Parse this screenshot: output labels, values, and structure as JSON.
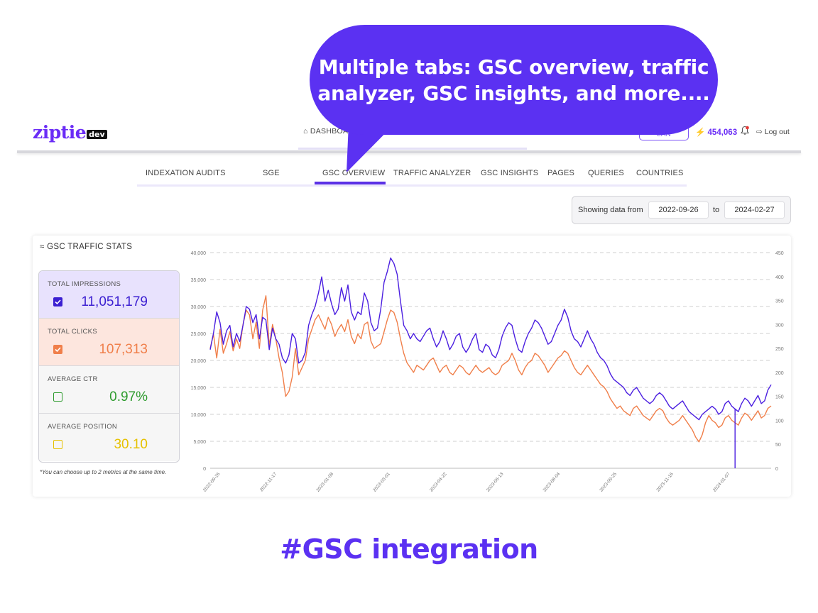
{
  "logo": {
    "text": "ziptie",
    "badge": "dev"
  },
  "topnav": {
    "dashboard_label": "DASHBOA",
    "plan_label": "LAN",
    "credits": "454,063",
    "logout_label": "Log out"
  },
  "tabs": [
    {
      "label": "INDEXATION AUDITS",
      "active": false
    },
    {
      "label": "SGE",
      "active": false
    },
    {
      "label": "GSC OVERVIEW",
      "active": true
    },
    {
      "label": "TRAFFIC ANALYZER",
      "active": false
    },
    {
      "label": "GSC INSIGHTS",
      "active": false
    },
    {
      "label": "PAGES",
      "active": false
    },
    {
      "label": "QUERIES",
      "active": false
    },
    {
      "label": "COUNTRIES",
      "active": false
    }
  ],
  "date_range": {
    "label": "Showing data from",
    "from": "2022-09-26",
    "to_label": "to",
    "to": "2024-02-27"
  },
  "stats": {
    "title": "GSC TRAFFIC STATS",
    "metrics": [
      {
        "label": "TOTAL IMPRESSIONS",
        "value": "11,051,179",
        "checked": true,
        "color": "#3b1fd1",
        "bg": "#e8e2fd"
      },
      {
        "label": "TOTAL CLICKS",
        "value": "107,313",
        "checked": true,
        "color": "#f07f4a",
        "bg": "#fde6de"
      },
      {
        "label": "AVERAGE CTR",
        "value": "0.97%",
        "checked": false,
        "color": "#2e9b2e",
        "bg": "#f6f6f6"
      },
      {
        "label": "AVERAGE POSITION",
        "value": "30.10",
        "checked": false,
        "color": "#e6c100",
        "bg": "#f6f6f6"
      }
    ],
    "note": "*You can choose up to 2 metrics at the same time."
  },
  "chart_data": {
    "type": "line",
    "x_ticks": [
      "2022-09-26",
      "2022-11-17",
      "2023-01-08",
      "2023-03-01",
      "2023-04-22",
      "2023-06-13",
      "2023-08-04",
      "2023-09-25",
      "2023-11-16",
      "2024-01-07"
    ],
    "y_left_ticks": [
      "40,000",
      "35,000",
      "30,000",
      "25,000",
      "20,000",
      "15,000",
      "10,000",
      "5,000",
      "0"
    ],
    "y_right_ticks": [
      "450",
      "400",
      "350",
      "300",
      "250",
      "200",
      "150",
      "100",
      "50",
      "0"
    ],
    "ylim_left": [
      0,
      40000
    ],
    "ylim_right": [
      0,
      450
    ],
    "grid": true,
    "series": [
      {
        "color": "#4b1fe0",
        "axis": "left",
        "values": [
          22000,
          25000,
          29000,
          27000,
          23000,
          25500,
          26500,
          22500,
          25000,
          23500,
          26500,
          30000,
          29500,
          27000,
          28500,
          24000,
          28000,
          27500,
          22000,
          26000,
          24000,
          23000,
          20500,
          19500,
          21000,
          25000,
          24000,
          19500,
          20000,
          21500,
          26500,
          28500,
          30000,
          32500,
          35500,
          31000,
          33000,
          30500,
          28500,
          29500,
          33500,
          31000,
          34000,
          29000,
          27500,
          29000,
          28500,
          32500,
          31000,
          27000,
          25500,
          26000,
          29500,
          34500,
          36500,
          39000,
          38000,
          36000,
          31000,
          26500,
          25500,
          24000,
          25000,
          24000,
          23500,
          24500,
          25500,
          26000,
          24000,
          22500,
          23500,
          25500,
          24000,
          22000,
          23000,
          24500,
          25000,
          22500,
          21500,
          22500,
          24000,
          25000,
          22000,
          21500,
          23000,
          22500,
          21000,
          20500,
          22000,
          24500,
          26000,
          27000,
          26500,
          24000,
          22000,
          21500,
          23500,
          25000,
          26000,
          27500,
          27000,
          26000,
          24500,
          23000,
          23500,
          25000,
          26500,
          27500,
          29500,
          28000,
          25500,
          24000,
          23500,
          22500,
          24000,
          25500,
          24000,
          23000,
          21500,
          20500,
          20000,
          19000,
          17500,
          16500,
          16000,
          15500,
          15000,
          14000,
          13500,
          14500,
          15000,
          14000,
          13000,
          12500,
          12000,
          12500,
          13500,
          14000,
          13500,
          12500,
          11500,
          11000,
          11500,
          12000,
          12500,
          11500,
          10500,
          10000,
          9500,
          9000,
          10000,
          10500,
          11000,
          11500,
          11000,
          10000,
          10500,
          12000,
          12500,
          11500,
          11000,
          10500,
          12000,
          13000,
          12500,
          11500,
          12500,
          13500,
          12000,
          12500,
          14500,
          15500
        ]
      },
      {
        "color": "#f07f4a",
        "axis": "right",
        "values": [
          250,
          280,
          230,
          290,
          240,
          260,
          285,
          245,
          270,
          250,
          300,
          330,
          320,
          270,
          305,
          250,
          330,
          360,
          255,
          300,
          270,
          230,
          200,
          150,
          160,
          190,
          250,
          195,
          210,
          225,
          270,
          290,
          310,
          320,
          305,
          290,
          315,
          300,
          275,
          290,
          300,
          285,
          310,
          275,
          260,
          280,
          270,
          300,
          305,
          265,
          250,
          255,
          260,
          285,
          310,
          330,
          325,
          305,
          270,
          240,
          220,
          210,
          200,
          215,
          210,
          205,
          215,
          225,
          230,
          215,
          200,
          210,
          215,
          200,
          195,
          205,
          215,
          210,
          200,
          195,
          205,
          215,
          205,
          200,
          205,
          210,
          200,
          195,
          200,
          215,
          220,
          225,
          240,
          225,
          205,
          195,
          210,
          220,
          225,
          240,
          235,
          225,
          215,
          200,
          210,
          220,
          230,
          235,
          245,
          240,
          225,
          210,
          200,
          195,
          205,
          215,
          205,
          195,
          185,
          175,
          170,
          160,
          145,
          135,
          125,
          130,
          120,
          115,
          110,
          125,
          130,
          120,
          110,
          105,
          100,
          110,
          120,
          125,
          120,
          105,
          95,
          90,
          95,
          100,
          110,
          100,
          90,
          80,
          65,
          55,
          70,
          95,
          110,
          100,
          95,
          85,
          90,
          105,
          110,
          100,
          95,
          90,
          105,
          115,
          110,
          100,
          110,
          120,
          105,
          110,
          125,
          130
        ]
      }
    ]
  },
  "callout": {
    "text": "Multiple tabs: GSC overview, traffic analyzer, GSC insights, and more...."
  },
  "tagline": "#GSC integration"
}
